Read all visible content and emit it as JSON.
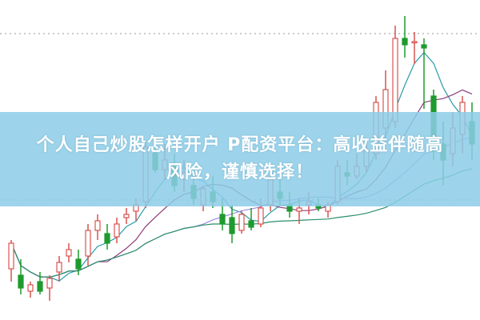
{
  "chart_data": {
    "type": "candlestick",
    "title": "",
    "xlabel": "",
    "ylabel": "",
    "ylim": [
      0,
      100
    ],
    "grid": "dotted horizontal",
    "colors": {
      "up": "#d9534f",
      "down": "#1e9a2e",
      "grid": "#999999",
      "ma": [
        "#2b9aa8",
        "#8e3b7a",
        "#9c8fe0",
        "#2a8f6a"
      ]
    },
    "moving_average_periods": [
      5,
      10,
      20,
      40
    ],
    "candles": [
      [
        16,
        25,
        12,
        24
      ],
      [
        14,
        19,
        8,
        10
      ],
      [
        9,
        12,
        7,
        11
      ],
      [
        12,
        15,
        8,
        9
      ],
      [
        10,
        14,
        6,
        13
      ],
      [
        15,
        20,
        12,
        18
      ],
      [
        20,
        24,
        18,
        22
      ],
      [
        19,
        22,
        14,
        16
      ],
      [
        20,
        30,
        17,
        28
      ],
      [
        28,
        33,
        25,
        31
      ],
      [
        27,
        30,
        22,
        24
      ],
      [
        26,
        32,
        24,
        30
      ],
      [
        32,
        35,
        30,
        33
      ],
      [
        34,
        38,
        31,
        36
      ],
      [
        37,
        56,
        35,
        54
      ],
      [
        52,
        56,
        46,
        47
      ],
      [
        47,
        55,
        44,
        50
      ],
      [
        48,
        52,
        40,
        42
      ],
      [
        44,
        50,
        40,
        46
      ],
      [
        42,
        47,
        36,
        38
      ],
      [
        36,
        42,
        34,
        41
      ],
      [
        40,
        45,
        35,
        37
      ],
      [
        33,
        38,
        28,
        30
      ],
      [
        32,
        36,
        24,
        27
      ],
      [
        28,
        34,
        27,
        33
      ],
      [
        31,
        35,
        28,
        29
      ],
      [
        30,
        38,
        29,
        35
      ],
      [
        36,
        46,
        34,
        44
      ],
      [
        40,
        48,
        36,
        38
      ],
      [
        36,
        40,
        32,
        34
      ],
      [
        34,
        38,
        30,
        35
      ],
      [
        36,
        40,
        33,
        37
      ],
      [
        36,
        38,
        34,
        35
      ],
      [
        34,
        37,
        32,
        36
      ],
      [
        37,
        50,
        36,
        48
      ],
      [
        46,
        50,
        42,
        45
      ],
      [
        45,
        52,
        44,
        48
      ],
      [
        48,
        56,
        46,
        53
      ],
      [
        52,
        70,
        50,
        68
      ],
      [
        60,
        78,
        55,
        72
      ],
      [
        62,
        92,
        60,
        88
      ],
      [
        88,
        95,
        82,
        86
      ],
      [
        87,
        90,
        80,
        87
      ],
      [
        86,
        88,
        66,
        85
      ],
      [
        70,
        72,
        50,
        55
      ],
      [
        55,
        62,
        42,
        50
      ],
      [
        52,
        65,
        48,
        60
      ],
      [
        58,
        70,
        52,
        68
      ],
      [
        62,
        68,
        50,
        55
      ]
    ]
  },
  "banner": {
    "line1": "个人自己炒股怎样开户 P配资平台：高收益伴随高",
    "line2": "风险，谨慎选择！"
  }
}
